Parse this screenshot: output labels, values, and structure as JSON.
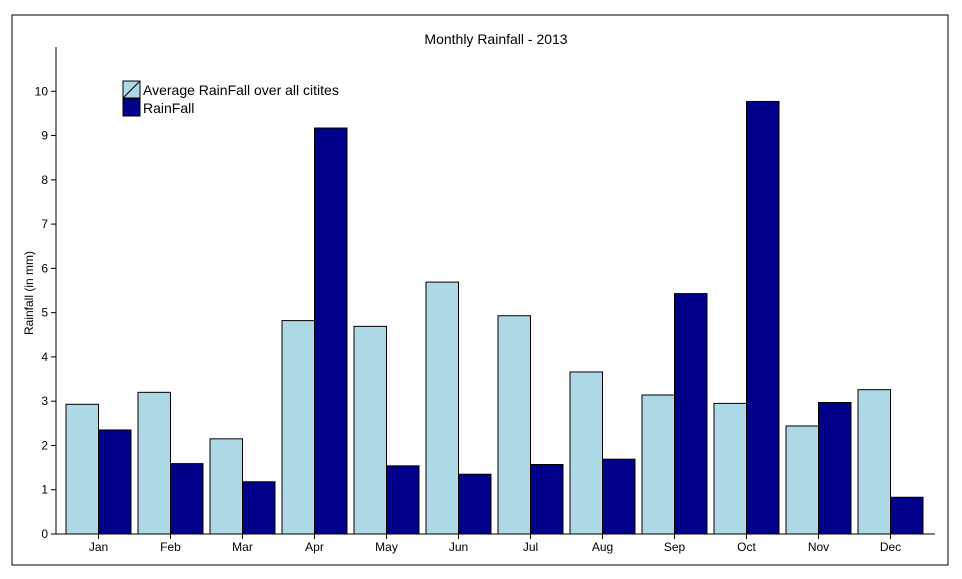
{
  "chart_data": {
    "type": "bar",
    "title": "Monthly Rainfall - 2013",
    "xlabel": "",
    "ylabel": "Rainfall (in mm)",
    "ylim": [
      0,
      11
    ],
    "yticks": [
      0,
      1,
      2,
      3,
      4,
      5,
      6,
      7,
      8,
      9,
      10
    ],
    "grid": false,
    "legend_position": "top-left",
    "categories": [
      "Jan",
      "Feb",
      "Mar",
      "Apr",
      "May",
      "Jun",
      "Jul",
      "Aug",
      "Sep",
      "Oct",
      "Nov",
      "Dec"
    ],
    "series": [
      {
        "name": "Average RainFall over all citites",
        "color": "#add8e6",
        "values": [
          2.93,
          3.2,
          2.15,
          4.82,
          4.69,
          5.69,
          4.93,
          3.66,
          3.14,
          2.95,
          2.44,
          3.26
        ]
      },
      {
        "name": "RainFall",
        "color": "#00008b",
        "values": [
          2.35,
          1.59,
          1.18,
          9.17,
          1.54,
          1.35,
          1.57,
          1.69,
          5.43,
          9.77,
          2.97,
          0.83
        ]
      }
    ]
  }
}
